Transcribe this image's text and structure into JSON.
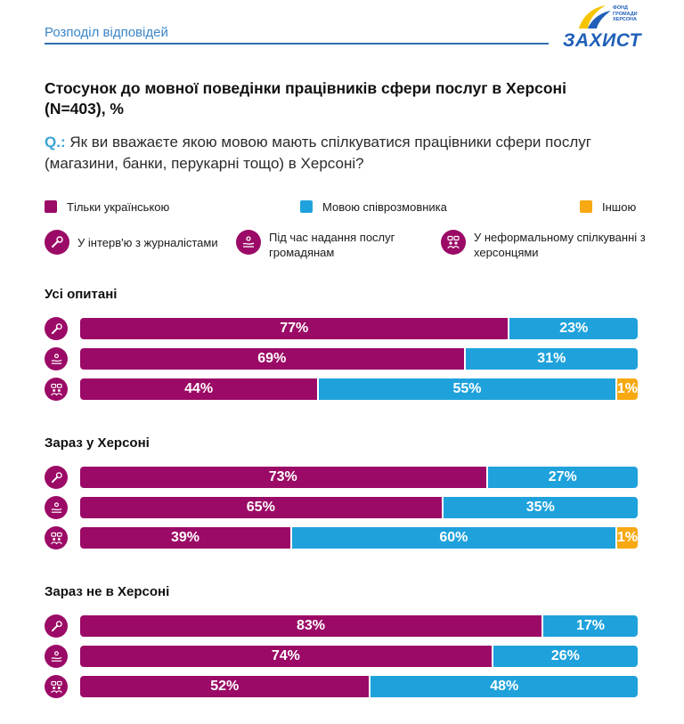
{
  "header": {
    "label": "Розподіл відповідей"
  },
  "logo": {
    "word": "ЗАХИСТ",
    "fund": "Фонд громади Херсона"
  },
  "title": "Стосунок до мовної поведінки працівників сфери послуг в Херсоні (N=403), %",
  "question": {
    "prefix": "Q.:",
    "text": " Як ви вважаєте якою мовою мають спілкуватися працівники сфери послуг (магазини, банки, перукарні тощо) в Херсоні?"
  },
  "colors": {
    "ukr": "#9b0a66",
    "int": "#1fa2dc",
    "oth": "#f6a912"
  },
  "legend": {
    "series": [
      {
        "label": "Тільки українською",
        "color": "#9b0a66"
      },
      {
        "label": "Мовою співрозмовника",
        "color": "#1fa2dc"
      },
      {
        "label": "Іншою",
        "color": "#f6a912"
      }
    ],
    "contexts": [
      {
        "label": "У інтерв'ю з журналістами",
        "icon": "microphone-icon"
      },
      {
        "label": "Під час надання послуг громадянам",
        "icon": "service-hands-icon"
      },
      {
        "label": "У неформальному спілкуванні з херсонцями",
        "icon": "people-chat-icon"
      }
    ]
  },
  "chart_data": {
    "type": "bar",
    "stacked": true,
    "orientation": "horizontal",
    "unit": "%",
    "series": [
      "Тільки українською",
      "Мовою співрозмовника",
      "Іншою"
    ],
    "groups": [
      {
        "name": "Усі опитані",
        "rows": [
          {
            "context": "У інтерв'ю з журналістами",
            "values": [
              77,
              23,
              0
            ]
          },
          {
            "context": "Під час надання послуг громадянам",
            "values": [
              69,
              31,
              0
            ]
          },
          {
            "context": "У неформальному спілкуванні з херсонцями",
            "values": [
              44,
              55,
              1
            ]
          }
        ]
      },
      {
        "name": "Зараз у Херсоні",
        "rows": [
          {
            "context": "У інтерв'ю з журналістами",
            "values": [
              73,
              27,
              0
            ]
          },
          {
            "context": "Під час надання послуг громадянам",
            "values": [
              65,
              35,
              0
            ]
          },
          {
            "context": "У неформальному спілкуванні з херсонцями",
            "values": [
              39,
              60,
              1
            ]
          }
        ]
      },
      {
        "name": "Зараз не в Херсоні",
        "rows": [
          {
            "context": "У інтерв'ю з журналістами",
            "values": [
              83,
              17,
              0
            ]
          },
          {
            "context": "Під час надання послуг громадянам",
            "values": [
              74,
              26,
              0
            ]
          },
          {
            "context": "У неформальному спілкуванні з херсонцями",
            "values": [
              52,
              48,
              0
            ]
          }
        ]
      }
    ]
  }
}
